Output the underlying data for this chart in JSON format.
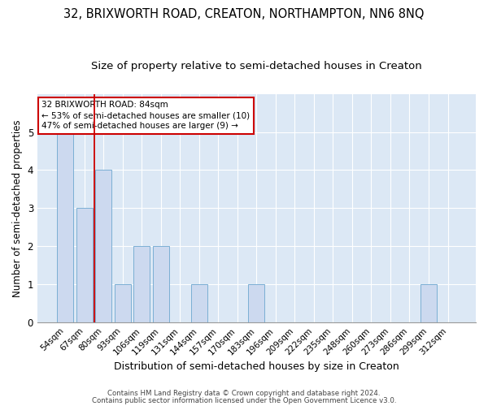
{
  "title": "32, BRIXWORTH ROAD, CREATON, NORTHAMPTON, NN6 8NQ",
  "subtitle": "Size of property relative to semi-detached houses in Creaton",
  "xlabel": "Distribution of semi-detached houses by size in Creaton",
  "ylabel": "Number of semi-detached properties",
  "categories": [
    "54sqm",
    "67sqm",
    "80sqm",
    "93sqm",
    "106sqm",
    "119sqm",
    "131sqm",
    "144sqm",
    "157sqm",
    "170sqm",
    "183sqm",
    "196sqm",
    "209sqm",
    "222sqm",
    "235sqm",
    "248sqm",
    "260sqm",
    "273sqm",
    "286sqm",
    "299sqm",
    "312sqm"
  ],
  "values": [
    5,
    3,
    4,
    1,
    2,
    2,
    0,
    1,
    0,
    0,
    1,
    0,
    0,
    0,
    0,
    0,
    0,
    0,
    0,
    1,
    0
  ],
  "bar_color": "#ccd9ef",
  "bar_edge_color": "#7bafd4",
  "red_line_x": 1.5,
  "red_line_color": "#cc0000",
  "annotation_title": "32 BRIXWORTH ROAD: 84sqm",
  "annotation_line1": "← 53% of semi-detached houses are smaller (10)",
  "annotation_line2": "47% of semi-detached houses are larger (9) →",
  "annotation_box_color": "#ffffff",
  "annotation_box_edge": "#cc0000",
  "ylim": [
    0,
    6
  ],
  "yticks": [
    0,
    1,
    2,
    3,
    4,
    5
  ],
  "footer1": "Contains HM Land Registry data © Crown copyright and database right 2024.",
  "footer2": "Contains public sector information licensed under the Open Government Licence v3.0.",
  "background_color": "#dce8f5",
  "grid_color": "#ffffff",
  "title_fontsize": 10.5,
  "subtitle_fontsize": 9.5,
  "xlabel_fontsize": 9,
  "ylabel_fontsize": 8.5
}
